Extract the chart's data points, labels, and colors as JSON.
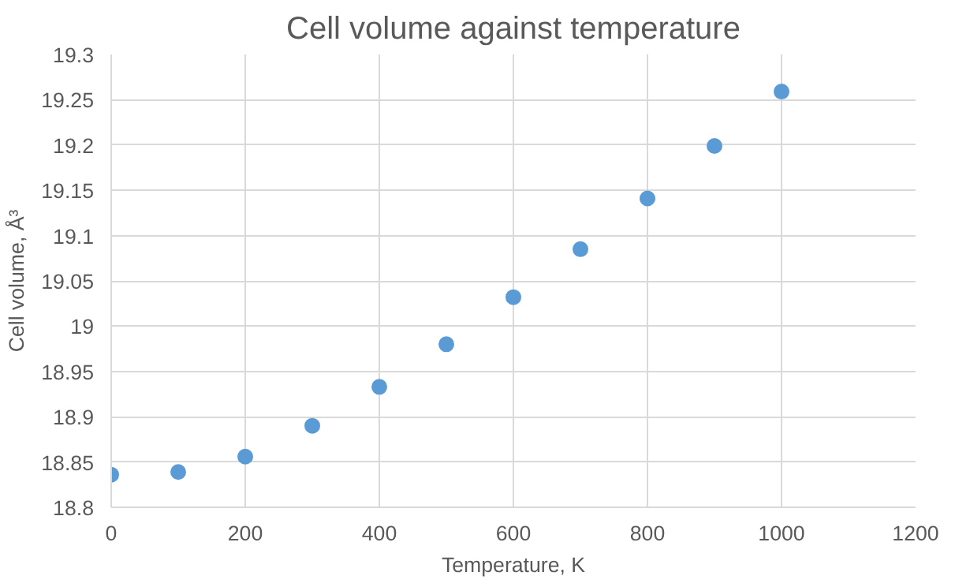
{
  "chart_data": {
    "type": "scatter",
    "title": "Cell volume against temperature",
    "xlabel": "Temperature, K",
    "ylabel": "Cell volume, Å³",
    "x": [
      0,
      100,
      200,
      300,
      400,
      500,
      600,
      700,
      800,
      900,
      1000
    ],
    "series": [
      {
        "color": "#5b9bd5",
        "values": [
          18.836,
          18.839,
          18.856,
          18.89,
          18.933,
          18.98,
          19.032,
          19.085,
          19.141,
          19.199,
          19.259
        ]
      }
    ],
    "xlim": [
      0,
      1200
    ],
    "xticks": [
      0,
      200,
      400,
      600,
      800,
      1000,
      1200
    ],
    "ylim": [
      18.8,
      19.3
    ],
    "yticks": [
      {
        "value": 18.8,
        "label": "18.8"
      },
      {
        "value": 18.85,
        "label": "18.85"
      },
      {
        "value": 18.9,
        "label": "18.9"
      },
      {
        "value": 18.95,
        "label": "18.95"
      },
      {
        "value": 19,
        "label": "19"
      },
      {
        "value": 19.05,
        "label": "19.05"
      },
      {
        "value": 19.1,
        "label": "19.1"
      },
      {
        "value": 19.15,
        "label": "19.15"
      },
      {
        "value": 19.2,
        "label": "19.2"
      },
      {
        "value": 19.25,
        "label": "19.25"
      },
      {
        "value": 19.3,
        "label": "19.3"
      }
    ],
    "grid": true,
    "marker": "circle"
  }
}
